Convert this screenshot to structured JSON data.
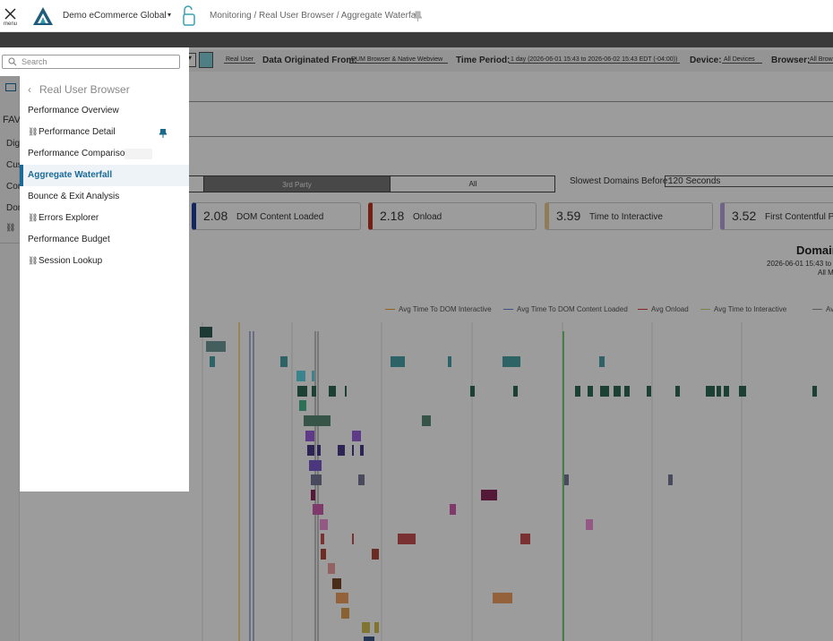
{
  "header": {
    "menu_label": "menu",
    "org": "Demo eCommerce Global",
    "breadcrumb": "Monitoring / Real User Browser / Aggregate Waterfall"
  },
  "rail": {
    "labels": [
      "FAV",
      "Digi",
      "Cus",
      "Cor",
      "Dom"
    ]
  },
  "sidebar": {
    "search_placeholder": "Search",
    "section_title": "Real User Browser",
    "items": [
      "Performance Overview",
      "Performance Detail",
      "Performance Comparison",
      "Aggregate Waterfall",
      "Bounce & Exit Analysis",
      "Errors Explorer",
      "Performance Budget",
      "Session Lookup"
    ]
  },
  "filters": {
    "mode": "Real User",
    "origin_label": "Data Originated From:",
    "origin_value": "RUM Browser & Native Webview",
    "period_label": "Time Period:",
    "period_value": "1 day (2026-06-01 15:43 to 2026-06-02 15:43 EDT (-04:00))",
    "device_label": "Device:",
    "device_value": "All Devices",
    "browser_label": "Browser:",
    "browser_value": "All Brows"
  },
  "tabs": [
    "3rd Party",
    "All"
  ],
  "slowest": {
    "label": "Slowest Domains Before:",
    "value": "120 Seconds"
  },
  "metrics": [
    {
      "value": "2.08",
      "label": "DOM Content Loaded"
    },
    {
      "value": "2.18",
      "label": "Onload"
    },
    {
      "value": "3.59",
      "label": "Time to Interactive"
    },
    {
      "value": "3.52",
      "label": "First Contentful Pa"
    }
  ],
  "chart": {
    "title": "Domain",
    "subtitle": "2026-06-01 15:43 to",
    "subtitle2": "All M",
    "legend": [
      "Avg Time To DOM Interactive",
      "Avg Time To DOM Content Loaded",
      "Avg Onload",
      "Avg Time to Interactive",
      "Avg Fi"
    ]
  }
}
